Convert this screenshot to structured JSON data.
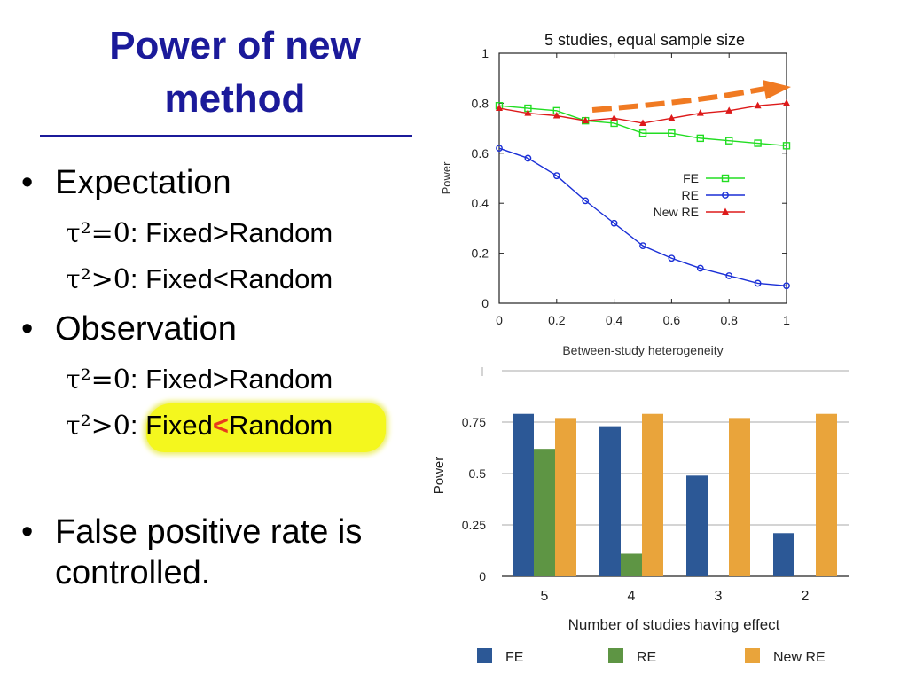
{
  "slide": {
    "title": "Power of new method",
    "bullets": [
      {
        "text": "Expectation",
        "subs": [
          {
            "sym": "τ²=0",
            "text": ": Fixed>Random"
          },
          {
            "sym": "τ²>0",
            "text": ": Fixed<Random"
          }
        ]
      },
      {
        "text": "Observation",
        "subs": [
          {
            "sym": "τ²=0",
            "text": ": Fixed>Random"
          },
          {
            "sym": "τ²>0",
            "pre": ": Fixed",
            "lt": "<",
            "post": "Random"
          }
        ]
      },
      {
        "text": "False positive rate is controlled."
      }
    ],
    "highlight_color": "#f4f71e",
    "arrow_color": "#f07a22"
  },
  "chart_data": [
    {
      "type": "line",
      "title": "5 studies, equal sample size",
      "xlabel": "Between-study heterogeneity",
      "ylabel": "Power",
      "xlim": [
        0,
        1
      ],
      "ylim": [
        0,
        1
      ],
      "x_ticks": [
        "0",
        "0.2",
        "0.4",
        "0.6",
        "0.8",
        "1"
      ],
      "y_ticks": [
        "0",
        "0.2",
        "0.4",
        "0.6",
        "0.8",
        "1"
      ],
      "legend_position": "right-middle",
      "x": [
        0,
        0.1,
        0.2,
        0.3,
        0.4,
        0.5,
        0.6,
        0.7,
        0.8,
        0.9,
        1.0
      ],
      "series": [
        {
          "name": "FE",
          "color": "#22dd22",
          "marker": "square",
          "values": [
            0.79,
            0.78,
            0.77,
            0.73,
            0.72,
            0.68,
            0.68,
            0.66,
            0.65,
            0.64,
            0.63
          ]
        },
        {
          "name": "RE",
          "color": "#1a2fd6",
          "marker": "circle",
          "values": [
            0.62,
            0.58,
            0.51,
            0.41,
            0.32,
            0.23,
            0.18,
            0.14,
            0.11,
            0.08,
            0.07
          ]
        },
        {
          "name": "New RE",
          "color": "#dd1a1a",
          "marker": "triangle",
          "values": [
            0.78,
            0.76,
            0.75,
            0.73,
            0.74,
            0.72,
            0.74,
            0.76,
            0.77,
            0.79,
            0.8
          ]
        }
      ]
    },
    {
      "type": "bar",
      "xlabel": "Number of studies having effect",
      "ylabel": "Power",
      "ylim": [
        0,
        1
      ],
      "y_ticks": [
        "0",
        "0.25",
        "0.5",
        "0.75"
      ],
      "categories": [
        "5",
        "4",
        "3",
        "2"
      ],
      "legend_position": "bottom",
      "series": [
        {
          "name": "FE",
          "color": "#2c5896",
          "values": [
            0.79,
            0.73,
            0.49,
            0.21
          ]
        },
        {
          "name": "RE",
          "color": "#5e9544",
          "values": [
            0.62,
            0.11,
            0,
            0
          ]
        },
        {
          "name": "New RE",
          "color": "#e9a43b",
          "values": [
            0.77,
            0.79,
            0.77,
            0.79
          ]
        }
      ]
    }
  ]
}
